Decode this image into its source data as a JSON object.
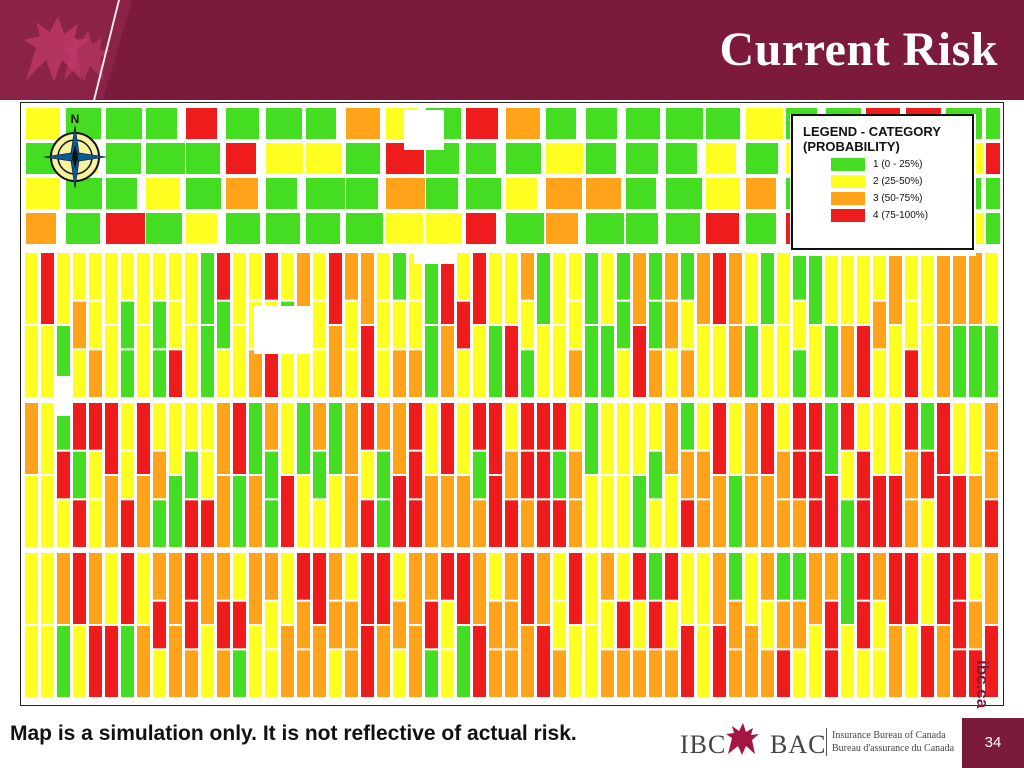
{
  "header": {
    "title": "Current Risk"
  },
  "legend": {
    "title_line1": "LEGEND - CATEGORY",
    "title_line2": "(PROBABILITY)",
    "items": [
      {
        "label": "1 (0 - 25%)",
        "color": "#44dd22"
      },
      {
        "label": "2 (25-50%)",
        "color": "#ffff22"
      },
      {
        "label": "3 (50-75%)",
        "color": "#ffa31a"
      },
      {
        "label": "4 (75-100%)",
        "color": "#ee1c1c"
      }
    ]
  },
  "compass": {
    "north_label": "N"
  },
  "footer": {
    "note": "Map is a simulation only. It is not reflective of actual risk.",
    "logo_ibc": "IBC",
    "logo_bac": "BAC",
    "org_en": "Insurance Bureau of Canada",
    "org_fr": "Bureau d'assurance du Canada",
    "page_number": "34",
    "site": "ibc.ca"
  },
  "colors": {
    "brand": "#7b1a3b",
    "accent": "#8a2347"
  }
}
